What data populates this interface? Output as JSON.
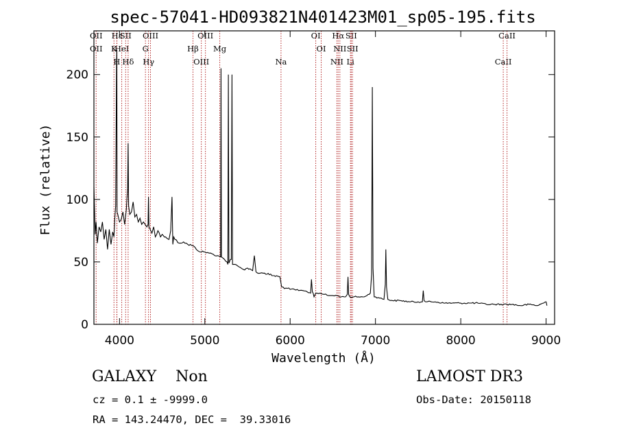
{
  "chart_data": {
    "type": "line",
    "title": "spec-57041-HD093821N401423M01_sp05-195.fits",
    "xlabel": "Wavelength (Å)",
    "ylabel": "Flux (relative)",
    "xlim": [
      3700,
      9100
    ],
    "ylim": [
      0,
      235
    ],
    "xticks": [
      4000,
      5000,
      6000,
      7000,
      8000,
      9000
    ],
    "yticks": [
      0,
      50,
      100,
      150,
      200
    ],
    "grid": false,
    "legend": "none",
    "line_color": "#000000",
    "marker_color": "#b22222",
    "series": [
      {
        "x": [
          3700,
          3715,
          3725,
          3740,
          3760,
          3780,
          3800,
          3820,
          3840,
          3860,
          3880,
          3900,
          3920,
          3935,
          3945,
          3955,
          3965,
          3968,
          3971,
          3980,
          4000,
          4020,
          4040,
          4060,
          4080,
          4095,
          4101,
          4107,
          4120,
          4140,
          4160,
          4180,
          4200,
          4220,
          4240,
          4260,
          4280,
          4300,
          4320,
          4335,
          4340,
          4345,
          4360,
          4380,
          4400,
          4420,
          4450,
          4480,
          4500,
          4540,
          4580,
          4600,
          4615,
          4625,
          4635,
          4650,
          4700,
          4750,
          4800,
          4861,
          4900,
          4960,
          5000,
          5050,
          5100,
          5150,
          5185,
          5190,
          5195,
          5230,
          5260,
          5270,
          5276,
          5282,
          5300,
          5310,
          5318,
          5325,
          5340,
          5400,
          5450,
          5500,
          5560,
          5580,
          5600,
          5650,
          5700,
          5800,
          5880,
          5900,
          5950,
          6000,
          6050,
          6100,
          6150,
          6200,
          6240,
          6250,
          6260,
          6270,
          6280,
          6300,
          6350,
          6400,
          6450,
          6500,
          6550,
          6600,
          6650,
          6670,
          6678,
          6685,
          6700,
          6750,
          6800,
          6850,
          6900,
          6940,
          6955,
          6963,
          6971,
          6985,
          7000,
          7050,
          7100,
          7115,
          7122,
          7130,
          7145,
          7200,
          7300,
          7400,
          7500,
          7550,
          7560,
          7570,
          7600,
          7700,
          7800,
          7900,
          8000,
          8100,
          8200,
          8300,
          8400,
          8500,
          8600,
          8700,
          8800,
          8900,
          9000,
          9010
        ],
        "y": [
          110,
          72,
          82,
          65,
          78,
          74,
          82,
          68,
          76,
          60,
          76,
          64,
          74,
          70,
          85,
          95,
          210,
          220,
          90,
          88,
          82,
          84,
          90,
          80,
          92,
          110,
          145,
          95,
          88,
          90,
          98,
          86,
          88,
          82,
          85,
          80,
          82,
          80,
          78,
          80,
          102,
          78,
          76,
          73,
          78,
          70,
          75,
          70,
          72,
          70,
          68,
          75,
          102,
          64,
          70,
          68,
          65,
          66,
          64,
          63,
          60,
          58,
          58,
          57,
          56,
          55,
          54,
          205,
          54,
          52,
          50,
          48,
          200,
          49,
          52,
          52,
          200,
          48,
          48,
          46,
          44,
          45,
          43,
          55,
          42,
          41,
          41,
          39,
          38,
          30,
          29,
          28,
          28,
          27,
          27,
          26,
          25,
          36,
          26,
          25,
          22,
          25,
          25,
          24,
          23,
          23,
          23,
          22,
          22,
          24,
          38,
          24,
          22,
          22,
          22,
          22,
          23,
          25,
          40,
          190,
          45,
          22,
          22,
          21,
          20,
          32,
          60,
          30,
          20,
          19,
          19,
          18,
          18,
          18,
          27,
          19,
          18,
          18,
          17,
          17,
          17,
          17,
          17,
          16,
          16,
          16,
          16,
          15,
          16,
          15,
          18,
          15
        ]
      }
    ],
    "line_markers": [
      {
        "x": 3726,
        "labels": [
          "OII",
          "OII"
        ]
      },
      {
        "x": 3935,
        "labels": [
          "K"
        ]
      },
      {
        "x": 3968,
        "labels": [
          "H"
        ]
      },
      {
        "x": 3970,
        "labels": [
          "Hε"
        ]
      },
      {
        "x": 4026,
        "labels": [
          "HeI"
        ]
      },
      {
        "x": 4101,
        "labels": [
          "Hδ"
        ]
      },
      {
        "x": 4072,
        "labels": [
          "SII"
        ]
      },
      {
        "x": 4304,
        "labels": [
          "G"
        ]
      },
      {
        "x": 4340,
        "labels": [
          "Hγ"
        ]
      },
      {
        "x": 4363,
        "labels": [
          "OIII"
        ]
      },
      {
        "x": 4861,
        "labels": [
          "Hβ"
        ]
      },
      {
        "x": 4959,
        "labels": [
          "OIII"
        ]
      },
      {
        "x": 5007,
        "labels": [
          "OIII"
        ]
      },
      {
        "x": 5175,
        "labels": [
          "Mg"
        ]
      },
      {
        "x": 5893,
        "labels": [
          "Na"
        ]
      },
      {
        "x": 6300,
        "labels": [
          "OI"
        ]
      },
      {
        "x": 6364,
        "labels": [
          "OI"
        ]
      },
      {
        "x": 6548,
        "labels": [
          "NII"
        ]
      },
      {
        "x": 6563,
        "labels": [
          "Hα"
        ]
      },
      {
        "x": 6583,
        "labels": [
          "NII"
        ]
      },
      {
        "x": 6707,
        "labels": [
          "Li"
        ]
      },
      {
        "x": 6716,
        "labels": [
          "SII"
        ]
      },
      {
        "x": 6731,
        "labels": [
          "SII"
        ]
      },
      {
        "x": 8498,
        "labels": [
          "CaII"
        ]
      },
      {
        "x": 8542,
        "labels": [
          "CaII"
        ]
      }
    ]
  },
  "info": {
    "class_line": "GALAXY    Non",
    "survey": "LAMOST DR3",
    "cz_line": "cz = 0.1 ± -9999.0",
    "obs_date": "Obs-Date: 20150118",
    "radec_line": "RA = 143.24470, DEC =  39.33016"
  }
}
